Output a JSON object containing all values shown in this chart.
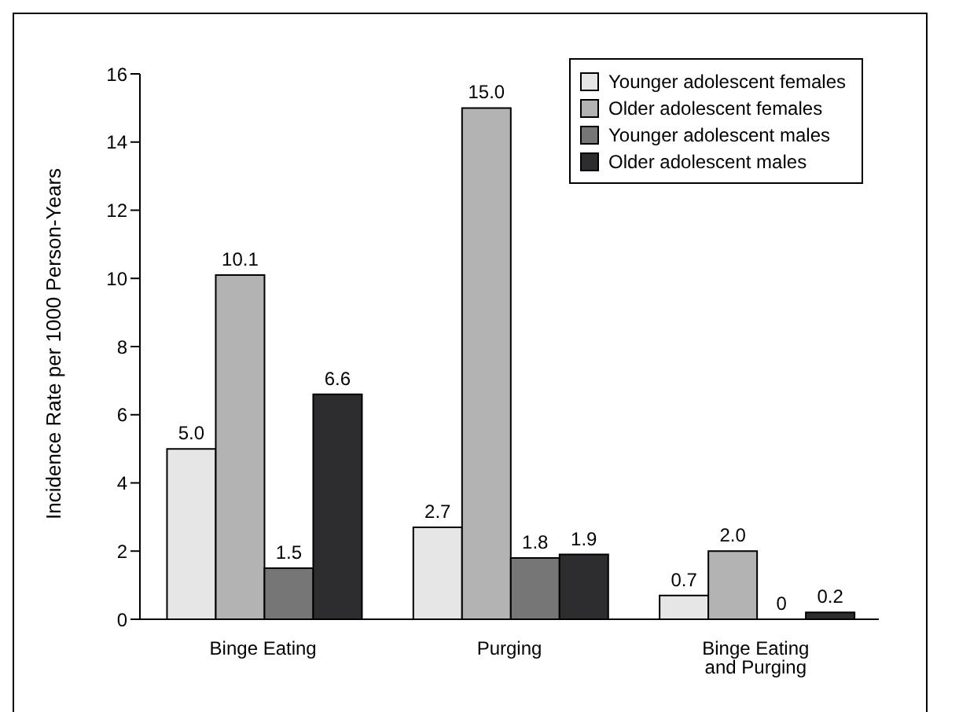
{
  "chart_data": {
    "type": "bar",
    "ylabel": "Incidence Rate per 1000 Person-Years",
    "categories": [
      "Binge Eating",
      "Purging",
      "Binge Eating and Purging"
    ],
    "series": [
      {
        "name": "Younger adolescent females",
        "color": "#e6e6e6",
        "values": [
          5.0,
          2.7,
          0.7
        ],
        "value_labels": [
          "5.0",
          "2.7",
          "0.7"
        ]
      },
      {
        "name": "Older adolescent females",
        "color": "#b3b3b3",
        "values": [
          10.1,
          15.0,
          2.0
        ],
        "value_labels": [
          "10.1",
          "15.0",
          "2.0"
        ]
      },
      {
        "name": "Younger adolescent males",
        "color": "#767676",
        "values": [
          1.5,
          1.8,
          0
        ],
        "value_labels": [
          "1.5",
          "1.8",
          "0"
        ]
      },
      {
        "name": "Older adolescent males",
        "color": "#2d2d2f",
        "values": [
          6.6,
          1.9,
          0.2
        ],
        "value_labels": [
          "6.6",
          "1.9",
          "0.2"
        ]
      }
    ],
    "ylim": [
      0,
      16
    ],
    "yticks": [
      0,
      2,
      4,
      6,
      8,
      10,
      12,
      14,
      16
    ],
    "grid": false,
    "legend": "top right"
  }
}
